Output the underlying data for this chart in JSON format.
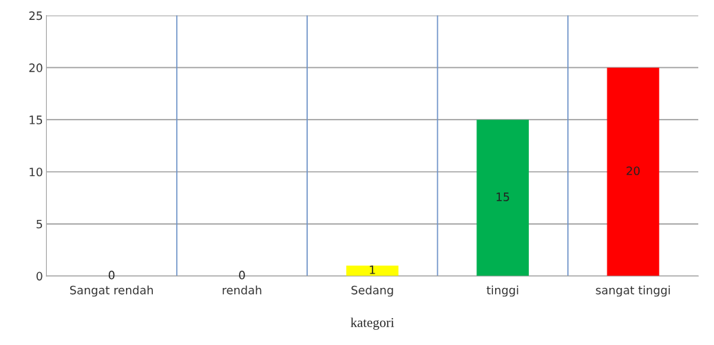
{
  "chart_data": {
    "type": "bar",
    "xlabel": "kategori",
    "categories": [
      "Sangat rendah",
      "rendah",
      "Sedang",
      "tinggi",
      "sangat tinggi"
    ],
    "values": [
      0,
      0,
      1,
      15,
      20
    ],
    "colors": [
      null,
      null,
      "#ffff00",
      "#00b050",
      "#ff0000"
    ],
    "ylim": [
      0,
      25
    ],
    "yticks": [
      0,
      5,
      10,
      15,
      20,
      25
    ],
    "grid": true,
    "data_labels": true
  }
}
